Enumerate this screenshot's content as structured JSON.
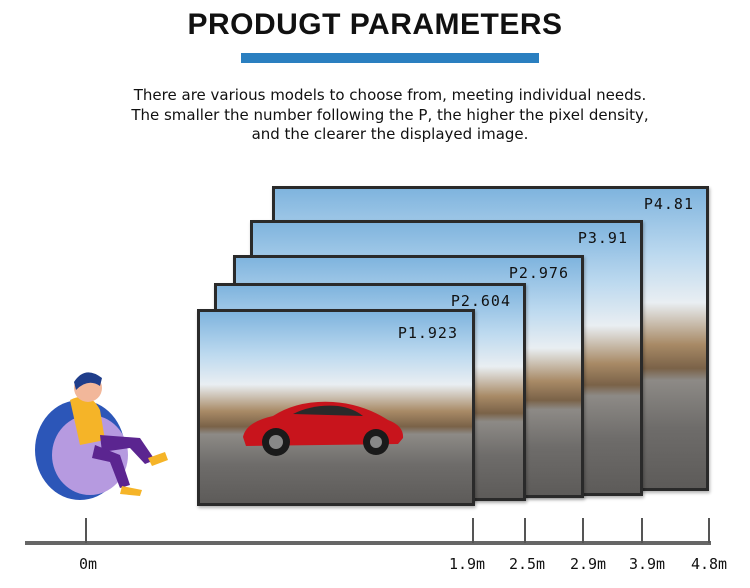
{
  "header": {
    "title": "PRODUGT PARAMETERS",
    "accent_color": "#2a7fc0",
    "description": "There are various models to choose from, meeting individual needs. The smaller the number following the P, the higher the pixel density, and the clearer the displayed image."
  },
  "screens": [
    {
      "label": "P4.81"
    },
    {
      "label": "P3.91"
    },
    {
      "label": "P2.976"
    },
    {
      "label": "P2.604"
    },
    {
      "label": "P1.923"
    }
  ],
  "distance_axis": {
    "ticks": [
      "0m",
      "1.9m",
      "2.5m",
      "2.9m",
      "3.9m",
      "4.8m"
    ]
  },
  "illustration": {
    "icon": "person-on-beanbag-icon",
    "car": "red-sports-car-icon"
  }
}
